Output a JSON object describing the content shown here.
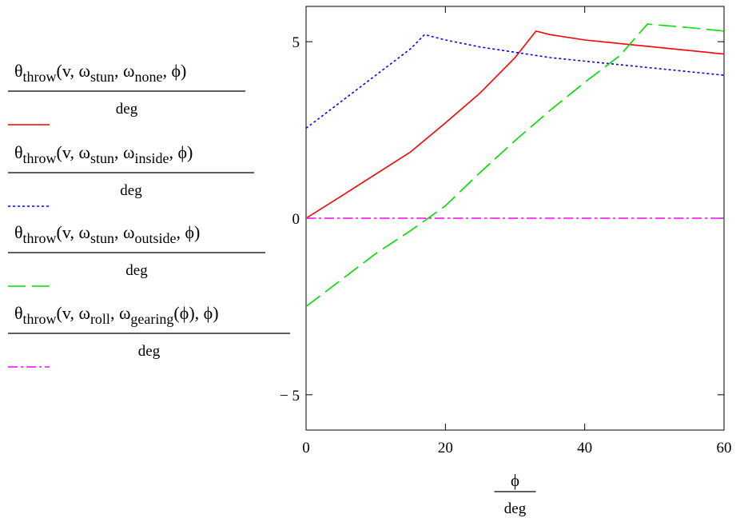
{
  "chart_data": {
    "type": "line",
    "title": "",
    "xlim": [
      0,
      60
    ],
    "ylim": [
      -6,
      6
    ],
    "grid": false,
    "legend_position": "left",
    "x_ticks": [
      "0",
      "20",
      "40",
      "60"
    ],
    "y_ticks": [
      "5",
      "0",
      "− 5"
    ],
    "x_tick_values": [
      0,
      20,
      40,
      60
    ],
    "y_tick_values": [
      5,
      0,
      -5
    ],
    "xlabel": {
      "numerator": "ϕ",
      "denominator": "deg"
    },
    "series": [
      {
        "name_parts": {
          "func": "θ",
          "func_sub": "throw",
          "args_pre": "v, ω",
          "sub1": "stun",
          "mid": ", ω",
          "sub2": "none",
          "arg_paren": "",
          "args_post": ", ϕ",
          "denominator": "deg"
        },
        "color": "#ff0000",
        "dash": "none",
        "x": [
          0,
          5,
          10,
          15,
          20,
          25,
          30,
          33,
          35,
          40,
          45,
          50,
          55,
          60
        ],
        "y": [
          0,
          0.62,
          1.25,
          1.88,
          2.7,
          3.55,
          4.55,
          5.3,
          5.2,
          5.05,
          4.95,
          4.85,
          4.75,
          4.65
        ]
      },
      {
        "name_parts": {
          "func": "θ",
          "func_sub": "throw",
          "args_pre": "v, ω",
          "sub1": "stun",
          "mid": ", ω",
          "sub2": "inside",
          "arg_paren": "",
          "args_post": ", ϕ",
          "denominator": "deg"
        },
        "color": "#0000ff",
        "dash": "3 3",
        "x": [
          0,
          5,
          10,
          15,
          17,
          20,
          25,
          30,
          35,
          40,
          45,
          50,
          55,
          60
        ],
        "y": [
          2.55,
          3.3,
          4.05,
          4.8,
          5.2,
          5.05,
          4.85,
          4.7,
          4.55,
          4.45,
          4.35,
          4.25,
          4.15,
          4.05
        ]
      },
      {
        "name_parts": {
          "func": "θ",
          "func_sub": "throw",
          "args_pre": "v, ω",
          "sub1": "stun",
          "mid": ", ω",
          "sub2": "outside",
          "arg_paren": "",
          "args_post": ", ϕ",
          "denominator": "deg"
        },
        "color": "#00dd00",
        "dash": "22 8",
        "x": [
          0,
          5,
          10,
          15,
          20,
          25,
          30,
          35,
          40,
          45,
          49,
          55,
          60
        ],
        "y": [
          -2.5,
          -1.75,
          -1.0,
          -0.35,
          0.35,
          1.3,
          2.2,
          3.05,
          3.85,
          4.6,
          5.5,
          5.4,
          5.3
        ]
      },
      {
        "name_parts": {
          "func": "θ",
          "func_sub": "throw",
          "args_pre": "v, ω",
          "sub1": "roll",
          "mid": ", ω",
          "sub2": "gearing",
          "arg_paren": "(ϕ)",
          "args_post": ", ϕ",
          "denominator": "deg"
        },
        "color": "#ff00ff",
        "dash": "12 4 3 4",
        "x": [
          0,
          60
        ],
        "y": [
          0,
          0
        ]
      }
    ]
  }
}
